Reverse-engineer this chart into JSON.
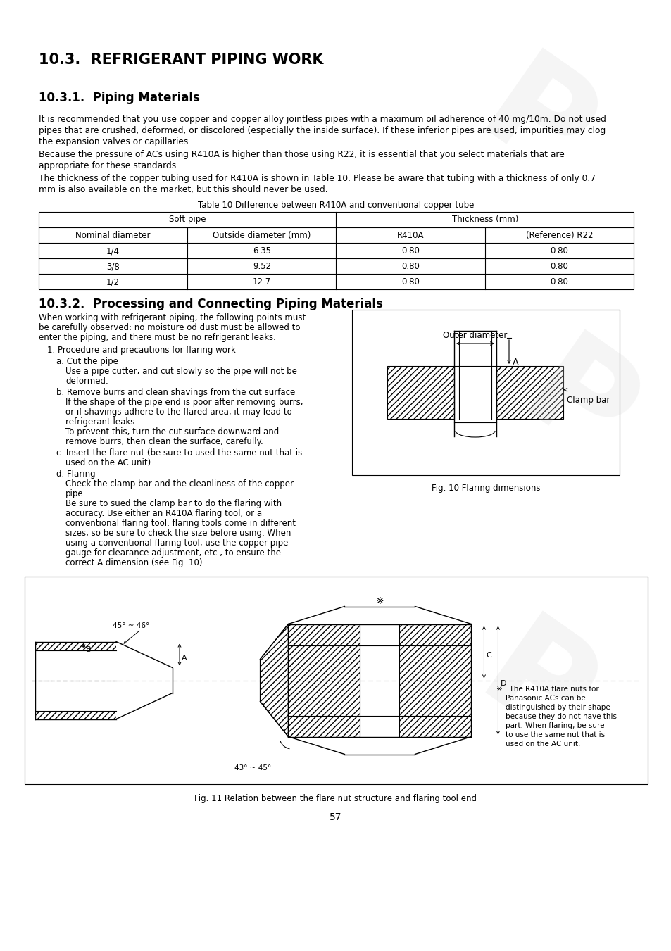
{
  "title1": "10.3.  REFRIGERANT PIPING WORK",
  "title2": "10.3.1.  Piping Materials",
  "title3": "10.3.2.  Processing and Connecting Piping Materials",
  "table_title": "Table 10 Difference between R410A and conventional copper tube",
  "table_subheaders": [
    "Nominal diameter",
    "Outside diameter (mm)",
    "R410A",
    "(Reference) R22"
  ],
  "table_rows": [
    [
      "1/4",
      "6.35",
      "0.80",
      "0.80"
    ],
    [
      "3/8",
      "9.52",
      "0.80",
      "0.80"
    ],
    [
      "1/2",
      "12.7",
      "0.80",
      "0.80"
    ]
  ],
  "fig10_caption": "Fig. 10 Flaring dimensions",
  "fig11_caption": "Fig. 11 Relation between the flare nut structure and flaring tool end",
  "page_number": "57",
  "bg_color": "#ffffff",
  "text_color": "#000000"
}
